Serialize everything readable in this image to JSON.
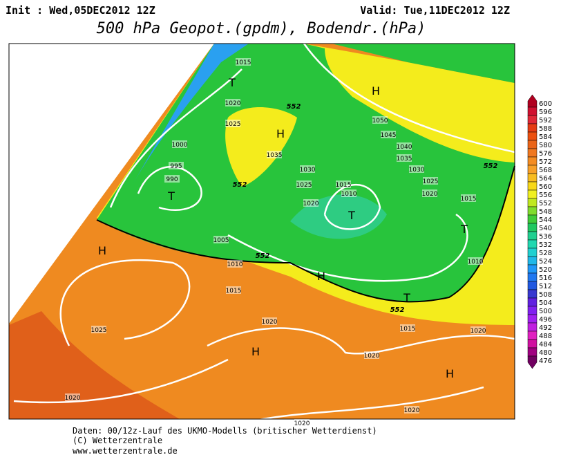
{
  "header": {
    "init": "Init : Wed,05DEC2012 12Z",
    "valid": "Valid: Tue,11DEC2012 12Z",
    "title": "500 hPa Geopot.(gpdm), Bodendr.(hPa)"
  },
  "map": {
    "isobar_labels": [
      "1015",
      "1020",
      "1025",
      "1000",
      "995",
      "990",
      "1035",
      "1030",
      "1025",
      "1020",
      "1015",
      "1010",
      "1005",
      "1010",
      "1015",
      "1025",
      "1020",
      "1020",
      "1020",
      "1050",
      "1045",
      "1040",
      "1035",
      "1030",
      "1025",
      "1020",
      "1015",
      "1010",
      "1015",
      "1020",
      "1020",
      "1020"
    ],
    "contour_labels": [
      "552",
      "552",
      "552",
      "552",
      "552"
    ],
    "pressure_centers": [
      "T",
      "H",
      "H",
      "T",
      "T",
      "T",
      "H",
      "H",
      "T",
      "H",
      "H"
    ]
  },
  "colorbar": {
    "values": [
      600,
      596,
      592,
      588,
      584,
      580,
      576,
      572,
      568,
      564,
      560,
      556,
      552,
      548,
      544,
      540,
      536,
      532,
      528,
      524,
      520,
      516,
      512,
      508,
      504,
      500,
      496,
      492,
      488,
      484,
      480,
      476
    ],
    "colors": [
      "#b00020",
      "#d01030",
      "#e02838",
      "#e63c14",
      "#ec5010",
      "#ea6418",
      "#f07820",
      "#f48c22",
      "#f8a028",
      "#f8bc20",
      "#f8d818",
      "#f0f020",
      "#c0e820",
      "#80dc2c",
      "#40cc38",
      "#20c860",
      "#20d090",
      "#20d8b0",
      "#20d0d0",
      "#20b8e8",
      "#2098f8",
      "#2078f0",
      "#2058e0",
      "#3838d0",
      "#6020e0",
      "#8020f0",
      "#a020f0",
      "#c020e0",
      "#e020c0",
      "#d010a0",
      "#a00080",
      "#700060"
    ]
  },
  "footer": {
    "line1": "Daten: 00/12z-Lauf des UKMO-Modells (britischer Wetterdienst)",
    "line2": "(C) Wetterzentrale",
    "line3": "www.wetterzentrale.de"
  }
}
